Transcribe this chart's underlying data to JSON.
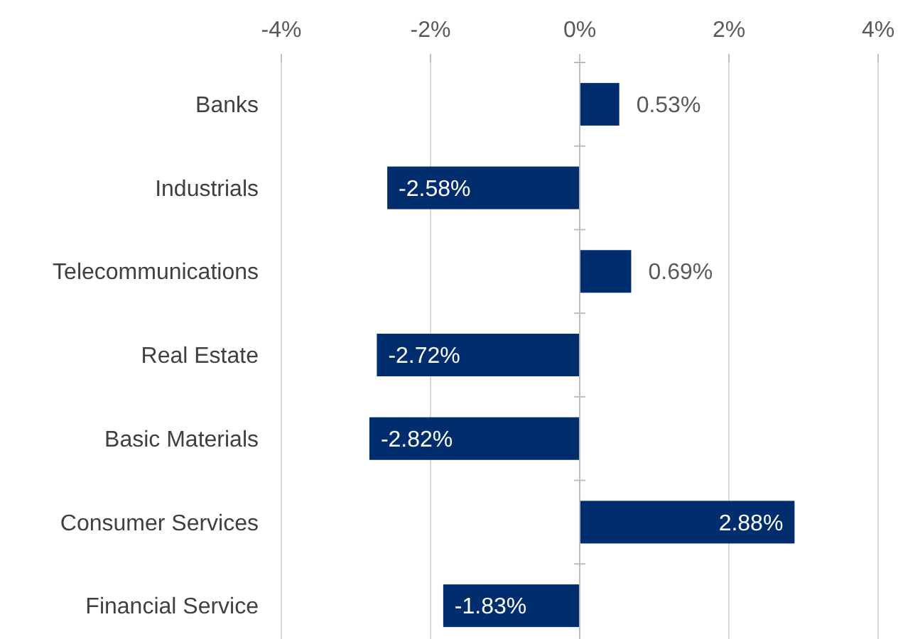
{
  "chart_data": {
    "type": "bar",
    "orientation": "horizontal",
    "categories": [
      "Banks",
      "Industrials",
      "Telecommunications",
      "Real Estate",
      "Basic Materials",
      "Consumer Services",
      "Financial Service"
    ],
    "values": [
      0.53,
      -2.58,
      0.69,
      -2.72,
      -2.82,
      2.88,
      -1.83
    ],
    "value_labels": [
      "0.53%",
      "-2.58%",
      "0.69%",
      "-2.72%",
      "-2.82%",
      "2.88%",
      "-1.83%"
    ],
    "color": "#002d6e",
    "xlim": [
      -4,
      4
    ],
    "xticks": [
      {
        "value": -4,
        "label": "-4%"
      },
      {
        "value": -2,
        "label": "-2%"
      },
      {
        "value": 0,
        "label": "0%"
      },
      {
        "value": 2,
        "label": "2%"
      },
      {
        "value": 4,
        "label": "4%"
      }
    ],
    "grid": "x"
  }
}
